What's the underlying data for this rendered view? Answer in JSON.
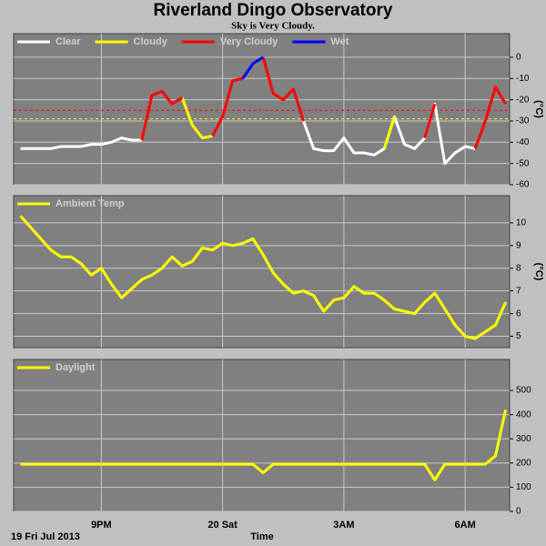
{
  "title": "Riverland Dingo Observatory",
  "subtitle": "Sky is Very Cloudy.",
  "chart_data": [
    {
      "type": "line",
      "y_label": "(°C)",
      "xlim": [
        18.83,
        31.1
      ],
      "xticks": [
        21,
        24,
        27,
        30
      ],
      "ylim": [
        -60,
        11.1
      ],
      "yticks": [
        0,
        -10,
        -20,
        -30,
        -40,
        -50,
        -60
      ],
      "grid": true,
      "thresholds": [
        {
          "value": -25,
          "color": "#ff0000"
        },
        {
          "value": -29,
          "color": "#ffff00"
        }
      ],
      "x": [
        19,
        19.25,
        19.5,
        19.75,
        20,
        20.25,
        20.5,
        20.75,
        21,
        21.25,
        21.5,
        21.75,
        22,
        22.25,
        22.5,
        22.75,
        23,
        23.25,
        23.5,
        23.75,
        24,
        24.25,
        24.5,
        24.75,
        25,
        25.25,
        25.5,
        25.75,
        26,
        26.25,
        26.5,
        26.75,
        27,
        27.25,
        27.5,
        27.75,
        28,
        28.25,
        28.5,
        28.75,
        29,
        29.25,
        29.5,
        29.75,
        30,
        30.25,
        30.5,
        30.75,
        31
      ],
      "series": [
        {
          "name": "Clear",
          "color": "#ffffff",
          "values": [
            -43,
            -43,
            -43,
            -43,
            -42,
            -42,
            -42,
            -41,
            -41,
            -40,
            -38,
            -39,
            -39,
            null,
            null,
            null,
            null,
            null,
            null,
            null,
            null,
            null,
            null,
            null,
            null,
            null,
            null,
            null,
            -30,
            -43,
            -44,
            -44,
            -38,
            -45,
            -45,
            -46,
            -43,
            -28,
            -41,
            -43,
            -38,
            -22,
            -50,
            -45,
            -42,
            -43,
            null,
            null,
            null
          ]
        },
        {
          "name": "Cloudy",
          "color": "#ffff00",
          "values": [
            null,
            null,
            null,
            null,
            null,
            null,
            null,
            null,
            null,
            null,
            null,
            null,
            null,
            null,
            null,
            null,
            -19,
            -32,
            -38,
            -37,
            null,
            null,
            null,
            null,
            null,
            null,
            null,
            null,
            null,
            null,
            null,
            null,
            null,
            null,
            null,
            null,
            -43,
            -28,
            null,
            null,
            null,
            null,
            null,
            null,
            null,
            null,
            null,
            null,
            null
          ]
        },
        {
          "name": "Very Cloudy",
          "color": "#ff0000",
          "values": [
            null,
            null,
            null,
            null,
            null,
            null,
            null,
            null,
            null,
            null,
            null,
            null,
            -39,
            -18,
            -16,
            -22,
            -19,
            null,
            null,
            -37,
            -28,
            -11,
            -10,
            null,
            0,
            -17,
            -20,
            -15,
            -30,
            null,
            null,
            null,
            null,
            null,
            null,
            null,
            null,
            null,
            null,
            null,
            -38,
            -22,
            null,
            null,
            null,
            -43,
            -30,
            -14,
            -22
          ]
        },
        {
          "name": "Wet",
          "color": "#0000ff",
          "values": [
            null,
            null,
            null,
            null,
            null,
            null,
            null,
            null,
            null,
            null,
            null,
            null,
            null,
            null,
            null,
            null,
            null,
            null,
            null,
            null,
            null,
            null,
            -10,
            -3,
            0,
            null,
            null,
            null,
            null,
            null,
            null,
            null,
            null,
            null,
            null,
            null,
            null,
            null,
            null,
            null,
            null,
            null,
            null,
            null,
            null,
            null,
            null,
            null,
            null
          ]
        }
      ]
    },
    {
      "type": "line",
      "y_label": "(°C)",
      "xlim": [
        18.83,
        31.1
      ],
      "xticks": [
        21,
        24,
        27,
        30
      ],
      "ylim": [
        4.5,
        11.2
      ],
      "yticks": [
        5,
        6,
        7,
        8,
        9,
        10
      ],
      "grid": true,
      "x": [
        19,
        19.25,
        19.5,
        19.75,
        20,
        20.25,
        20.5,
        20.75,
        21,
        21.25,
        21.5,
        21.75,
        22,
        22.25,
        22.5,
        22.75,
        23,
        23.25,
        23.5,
        23.75,
        24,
        24.25,
        24.5,
        24.75,
        25,
        25.25,
        25.5,
        25.75,
        26,
        26.25,
        26.5,
        26.75,
        27,
        27.25,
        27.5,
        27.75,
        28,
        28.25,
        28.5,
        28.75,
        29,
        29.25,
        29.5,
        29.75,
        30,
        30.25,
        30.5,
        30.75,
        31
      ],
      "series": [
        {
          "name": "Ambient Temp",
          "color": "#ffff00",
          "values": [
            10.3,
            9.8,
            9.3,
            8.8,
            8.5,
            8.5,
            8.2,
            7.7,
            8.0,
            7.3,
            6.7,
            7.1,
            7.5,
            7.7,
            8.0,
            8.5,
            8.1,
            8.3,
            8.9,
            8.8,
            9.1,
            9.0,
            9.1,
            9.3,
            8.6,
            7.8,
            7.3,
            6.9,
            7.0,
            6.8,
            6.1,
            6.6,
            6.7,
            7.2,
            6.9,
            6.9,
            6.6,
            6.2,
            6.1,
            6.0,
            6.5,
            6.9,
            6.2,
            5.5,
            5.0,
            4.9,
            5.2,
            5.5,
            6.5
          ]
        }
      ]
    },
    {
      "type": "line",
      "xlim": [
        18.83,
        31.1
      ],
      "xticks": [
        {
          "value": 21,
          "label": "9PM"
        },
        {
          "value": 24,
          "label": "20 Sat"
        },
        {
          "value": 27,
          "label": "3AM"
        },
        {
          "value": 30,
          "label": "6AM"
        }
      ],
      "ylim": [
        0,
        628
      ],
      "yticks": [
        0,
        100,
        200,
        300,
        400,
        500
      ],
      "grid": true,
      "x_label": "Time",
      "date_label": "19 Fri Jul 2013",
      "x": [
        19,
        19.25,
        19.5,
        19.75,
        20,
        20.25,
        20.5,
        20.75,
        21,
        21.25,
        21.5,
        21.75,
        22,
        22.25,
        22.5,
        22.75,
        23,
        23.25,
        23.5,
        23.75,
        24,
        24.25,
        24.5,
        24.75,
        25,
        25.25,
        25.5,
        25.75,
        26,
        26.25,
        26.5,
        26.75,
        27,
        27.25,
        27.5,
        27.75,
        28,
        28.25,
        28.5,
        28.75,
        29,
        29.25,
        29.5,
        29.75,
        30,
        30.25,
        30.5,
        30.75,
        31
      ],
      "series": [
        {
          "name": "Daylight",
          "color": "#ffff00",
          "values": [
            195,
            195,
            195,
            195,
            195,
            195,
            195,
            195,
            195,
            195,
            195,
            195,
            195,
            195,
            195,
            195,
            195,
            195,
            195,
            195,
            195,
            195,
            195,
            195,
            160,
            195,
            195,
            195,
            195,
            195,
            195,
            195,
            195,
            195,
            195,
            195,
            195,
            195,
            195,
            195,
            195,
            130,
            195,
            195,
            195,
            195,
            195,
            230,
            420
          ]
        }
      ]
    }
  ]
}
